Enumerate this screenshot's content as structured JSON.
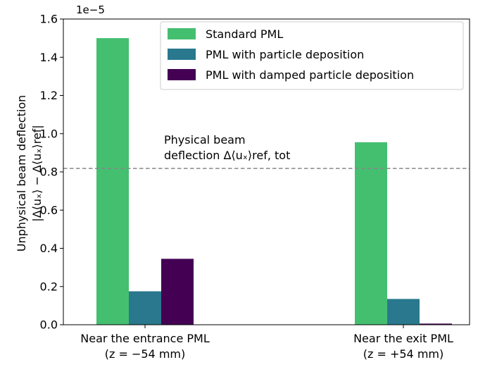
{
  "chart_data": {
    "type": "bar",
    "scale_label": "1e−5",
    "ylabel_line1": "Unphysical beam deflection",
    "ylabel_line2": "|Δ⟨uₓ⟩ − Δ⟨uₓ⟩ref|",
    "categories": [
      {
        "line1": "Near the entrance PML",
        "line2": "(z = −54 mm)"
      },
      {
        "line1": "Near the exit PML",
        "line2": "(z = +54 mm)"
      }
    ],
    "series": [
      {
        "name": "Standard PML",
        "color": "#44bf70",
        "values": [
          1.5,
          0.955
        ]
      },
      {
        "name": "PML with particle deposition",
        "color": "#2a788e",
        "values": [
          0.175,
          0.135
        ]
      },
      {
        "name": "PML with damped particle deposition",
        "color": "#440154",
        "values": [
          0.345,
          0.006
        ]
      }
    ],
    "ylim": [
      0,
      1.6
    ],
    "yticks": [
      "0.0",
      "0.2",
      "0.4",
      "0.6",
      "0.8",
      "1.0",
      "1.2",
      "1.4",
      "1.6"
    ],
    "reference_line": {
      "value": 0.818,
      "style": "dashed",
      "color": "#888888",
      "label_line1": "Physical beam",
      "label_line2": "deflection Δ⟨uₓ⟩ref, tot"
    },
    "legend_position": "top-right",
    "grid": false
  }
}
